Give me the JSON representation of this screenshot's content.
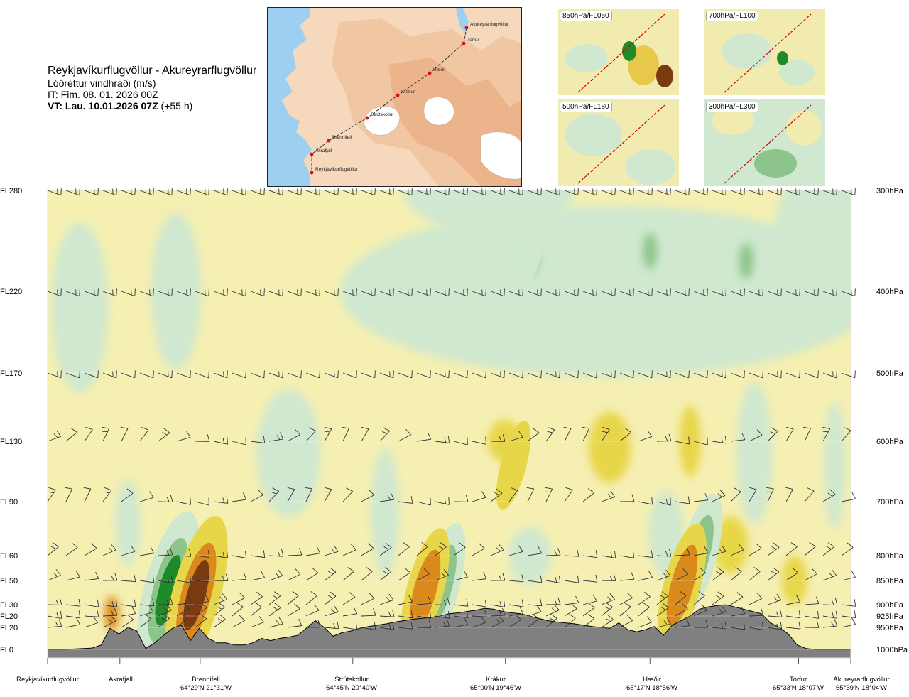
{
  "header": {
    "route": "Reykjavíkurflugvöllur - Akureyrarflugvöllur",
    "quantity": "Lóðréttur vindhraði (m/s)",
    "init_time": "IT: Fim. 08. 01. 2026 00Z",
    "valid_prefix": "VT: Lau. 10.01.2026 07Z",
    "valid_suffix": "(+55 h)"
  },
  "map": {
    "places": [
      {
        "name": "Akureyrarflugvöllur"
      },
      {
        "name": "Torfur"
      },
      {
        "name": "Hæðir"
      },
      {
        "name": "Krákur"
      },
      {
        "name": "Strútskollur"
      },
      {
        "name": "Brennifell"
      },
      {
        "name": "Akrafjall"
      },
      {
        "name": "Reykjavíkurflugvöllur"
      }
    ]
  },
  "insets": [
    {
      "label": "850hPa/FL050"
    },
    {
      "label": "700hPa/FL100"
    },
    {
      "label": "500hPa/FL180"
    },
    {
      "label": "300hPa/FL300"
    }
  ],
  "chart_data": {
    "type": "heatmap",
    "title": "Lóðréttur vindhraði (m/s)",
    "x_unit": "distance along route (fraction)",
    "left_axis": [
      {
        "label": "FL280",
        "p": 300
      },
      {
        "label": "FL220",
        "p": 400
      },
      {
        "label": "FL170",
        "p": 500
      },
      {
        "label": "FL130",
        "p": 600
      },
      {
        "label": "FL90",
        "p": 700
      },
      {
        "label": "FL60",
        "p": 800
      },
      {
        "label": "FL50",
        "p": 850
      },
      {
        "label": "FL30",
        "p": 900
      },
      {
        "label": "FL20",
        "p": 925
      },
      {
        "label": "FL20",
        "p": 950
      },
      {
        "label": "FL0",
        "p": 1000
      }
    ],
    "right_axis": [
      {
        "label": "300hPa",
        "p": 300
      },
      {
        "label": "400hPa",
        "p": 400
      },
      {
        "label": "500hPa",
        "p": 500
      },
      {
        "label": "600hPa",
        "p": 600
      },
      {
        "label": "700hPa",
        "p": 700
      },
      {
        "label": "800hPa",
        "p": 800
      },
      {
        "label": "850hPa",
        "p": 850
      },
      {
        "label": "900hPa",
        "p": 900
      },
      {
        "label": "925hPa",
        "p": 925
      },
      {
        "label": "950hPa",
        "p": 950
      },
      {
        "label": "1000hPa",
        "p": 1000
      }
    ],
    "wind_levels": [
      300,
      400,
      500,
      600,
      700,
      800,
      850,
      900,
      925,
      950
    ],
    "locations": [
      {
        "name": "Reykjavíkurflugvöllur",
        "coord": "",
        "x": 0.0
      },
      {
        "name": "Akrafjall",
        "coord": "",
        "x": 0.09
      },
      {
        "name": "Brennifell",
        "coord": "64°29'N 21°31'W",
        "x": 0.19
      },
      {
        "name": "Strútskollur",
        "coord": "64°45'N 20°40'W",
        "x": 0.38
      },
      {
        "name": "Krákur",
        "coord": "65°00'N 19°46'W",
        "x": 0.57
      },
      {
        "name": "Hæðir",
        "coord": "65°17'N 18°56'W",
        "x": 0.75
      },
      {
        "name": "Torfur",
        "coord": "65°33'N 18°07'W",
        "x": 0.935
      },
      {
        "name": "Akureyrarflugvöllur",
        "coord": "65°39'N 18°04'W",
        "x": 1.0
      }
    ],
    "color_scale": {
      "strong_down": "#7a3a12",
      "mod_down": "#d98a1a",
      "weak_down": "#e8d64a",
      "neutral": "#f5efb2",
      "weak_up": "#cfe8cf",
      "mod_up": "#8cc48c",
      "strong_up": "#1f8a2a",
      "terrain": "#808080"
    },
    "features": [
      {
        "kind": "up",
        "x": 0.15,
        "p": 870,
        "strength": 3
      },
      {
        "kind": "down",
        "x": 0.185,
        "p": 880,
        "strength": 3
      },
      {
        "kind": "up",
        "x": 0.49,
        "p": 860,
        "strength": 2
      },
      {
        "kind": "down",
        "x": 0.47,
        "p": 870,
        "strength": 2
      },
      {
        "kind": "up",
        "x": 0.81,
        "p": 800,
        "strength": 2
      },
      {
        "kind": "down",
        "x": 0.79,
        "p": 860,
        "strength": 2
      },
      {
        "kind": "up",
        "x": 0.6,
        "p": 360,
        "strength": 1
      },
      {
        "kind": "down",
        "x": 0.58,
        "p": 640,
        "strength": 1
      }
    ],
    "terrain_hpa": [
      1000,
      1000,
      1000,
      999,
      998,
      997,
      990,
      952,
      965,
      950,
      958,
      998,
      985,
      968,
      952,
      945,
      980,
      952,
      975,
      985,
      985,
      990,
      990,
      985,
      975,
      980,
      975,
      972,
      968,
      952,
      935,
      950,
      970,
      962,
      958,
      952,
      948,
      945,
      942,
      938,
      935,
      932,
      930,
      928,
      925,
      920,
      918,
      915,
      912,
      908,
      910,
      915,
      918,
      920,
      925,
      930,
      935,
      938,
      940,
      942,
      945,
      948,
      950,
      952,
      940,
      955,
      960,
      955,
      948,
      968,
      945,
      935,
      925,
      910,
      905,
      902,
      900,
      905,
      910,
      915,
      920,
      940,
      950,
      965,
      990,
      998,
      1000,
      1000,
      1000,
      1000,
      1000
    ]
  }
}
